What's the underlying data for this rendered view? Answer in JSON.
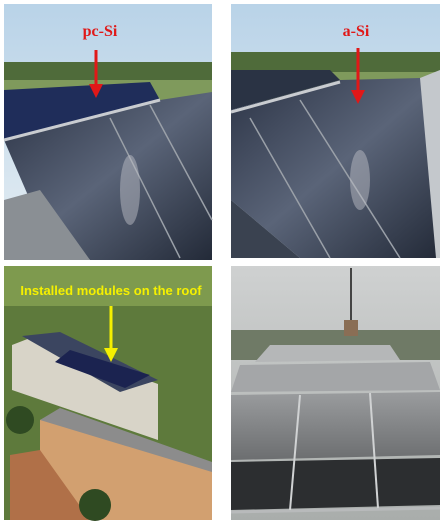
{
  "labels": {
    "top_left": "pc-Si",
    "top_right": "a-Si",
    "bottom_left": "Installed modules on the roof"
  }
}
